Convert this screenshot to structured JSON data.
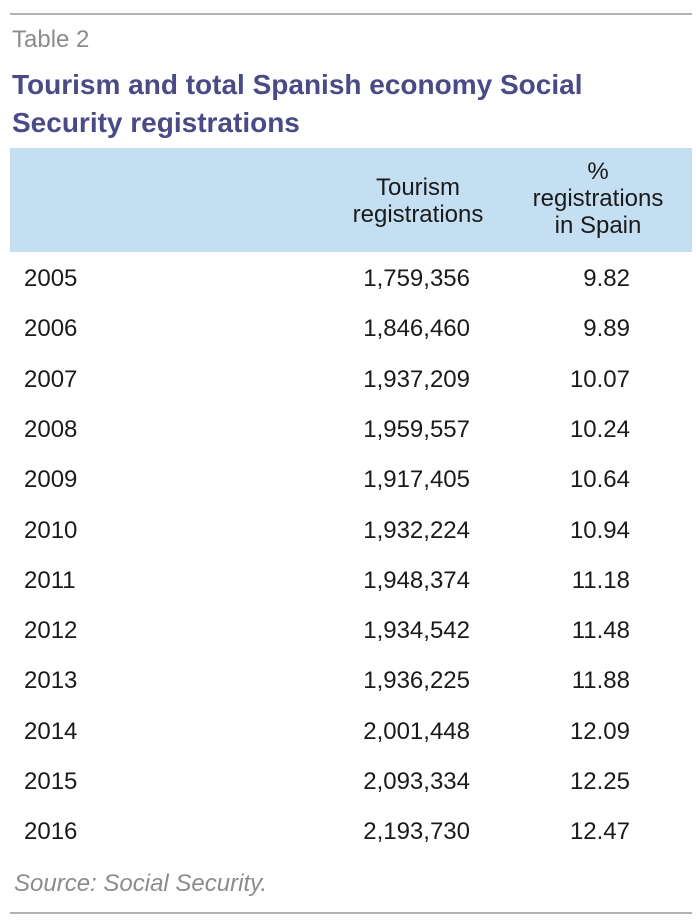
{
  "table_label": "Table 2",
  "title": "Tourism and total Spanish economy Social Security registrations",
  "header": {
    "col1": "",
    "col2_line1": "Tourism",
    "col2_line2": "registrations",
    "col3_line1": "%",
    "col3_line2": "registrations",
    "col3_line3": "in Spain"
  },
  "rows": [
    {
      "year": "2005",
      "registrations": "1,759,356",
      "pct": "9.82"
    },
    {
      "year": "2006",
      "registrations": "1,846,460",
      "pct": "9.89"
    },
    {
      "year": "2007",
      "registrations": "1,937,209",
      "pct": "10.07"
    },
    {
      "year": "2008",
      "registrations": "1,959,557",
      "pct": "10.24"
    },
    {
      "year": "2009",
      "registrations": "1,917,405",
      "pct": "10.64"
    },
    {
      "year": "2010",
      "registrations": "1,932,224",
      "pct": "10.94"
    },
    {
      "year": "2011",
      "registrations": "1,948,374",
      "pct": "11.18"
    },
    {
      "year": "2012",
      "registrations": "1,934,542",
      "pct": "11.48"
    },
    {
      "year": "2013",
      "registrations": "1,936,225",
      "pct": "11.88"
    },
    {
      "year": "2014",
      "registrations": "2,001,448",
      "pct": "12.09"
    },
    {
      "year": "2015",
      "registrations": "2,093,334",
      "pct": "12.25"
    },
    {
      "year": "2016",
      "registrations": "2,193,730",
      "pct": "12.47"
    }
  ],
  "source": "Source: Social Security.",
  "colors": {
    "title": "#4a4a86",
    "header_bg": "#c5dff2",
    "muted": "#8c8c8c",
    "rule": "#b3b3b3"
  }
}
